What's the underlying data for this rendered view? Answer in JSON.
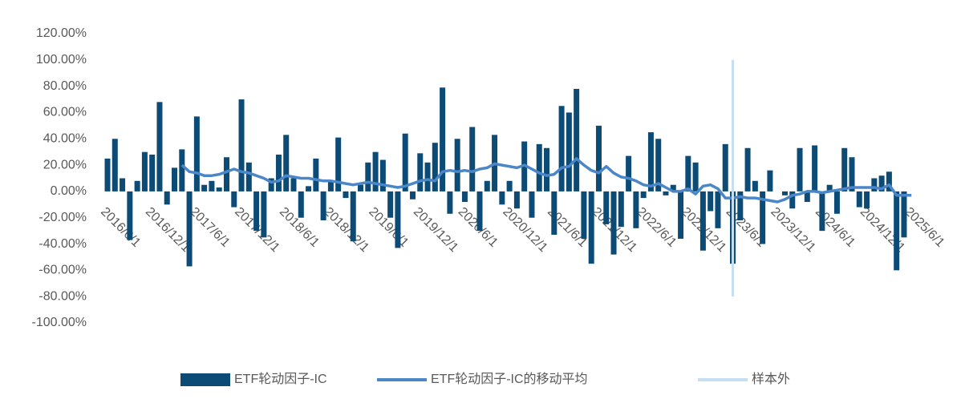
{
  "chart_data": {
    "type": "bar-line",
    "categories": [
      "2016/6/1",
      null,
      null,
      null,
      null,
      null,
      "2016/12/1",
      null,
      null,
      null,
      null,
      null,
      "2017/6/1",
      null,
      null,
      null,
      null,
      null,
      "2017/12/1",
      null,
      null,
      null,
      null,
      null,
      "2018/6/1",
      null,
      null,
      null,
      null,
      null,
      "2018/12/1",
      null,
      null,
      null,
      null,
      null,
      "2019/6/1",
      null,
      null,
      null,
      null,
      null,
      "2019/12/1",
      null,
      null,
      null,
      null,
      null,
      "2020/6/1",
      null,
      null,
      null,
      null,
      null,
      "2020/12/1",
      null,
      null,
      null,
      null,
      null,
      "2021/6/1",
      null,
      null,
      null,
      null,
      null,
      "2021/12/1",
      null,
      null,
      null,
      null,
      null,
      "2022/6/1",
      null,
      null,
      null,
      null,
      null,
      "2022/12/1",
      null,
      null,
      null,
      null,
      null,
      "2023/6/1",
      null,
      null,
      null,
      null,
      null,
      "2023/12/1",
      null,
      null,
      null,
      null,
      null,
      "2024/6/1",
      null,
      null,
      null,
      null,
      null,
      "2024/12/1",
      null,
      null,
      null,
      null,
      null,
      "2025/6/1"
    ],
    "series": [
      {
        "name": "ETF轮动因子-IC",
        "kind": "bar",
        "color": "#0c4b76",
        "values": [
          25,
          40,
          10,
          -37,
          8,
          30,
          28,
          68,
          -10,
          18,
          32,
          -57,
          57,
          5,
          8,
          3,
          26,
          -12,
          70,
          22,
          -30,
          -35,
          10,
          28,
          43,
          10,
          -20,
          4,
          25,
          -22,
          8,
          41,
          -5,
          -38,
          5,
          22,
          30,
          24,
          -20,
          -43,
          44,
          -6,
          29,
          22,
          37,
          79,
          -17,
          40,
          -8,
          49,
          -30,
          8,
          43,
          -10,
          8,
          -13,
          38,
          -20,
          36,
          33,
          -33,
          65,
          60,
          78,
          -36,
          -55,
          50,
          -25,
          -48,
          -27,
          27,
          -28,
          -5,
          45,
          40,
          -3,
          5,
          -36,
          27,
          22,
          -45,
          -15,
          -28,
          36,
          -55,
          -22,
          33,
          8,
          -40,
          16,
          0,
          -3,
          -13,
          33,
          -8,
          35,
          -30,
          5,
          -17,
          33,
          26,
          -12,
          -13,
          10,
          12,
          15,
          -60,
          -35,
          0
        ]
      },
      {
        "name": "ETF轮动因子-IC的移动平均",
        "kind": "line",
        "color": "#4a86c8",
        "values": [
          null,
          null,
          null,
          null,
          null,
          null,
          null,
          null,
          null,
          null,
          20,
          15,
          14,
          12,
          12,
          13,
          15,
          17,
          15,
          14,
          12,
          10,
          7,
          8,
          12,
          11,
          10,
          10,
          9,
          8,
          8,
          7,
          6,
          5,
          6,
          7,
          6,
          5,
          4,
          3,
          4,
          6,
          8,
          9,
          8,
          15,
          16,
          15,
          16,
          15,
          17,
          18,
          21,
          20,
          19,
          18,
          20,
          17,
          14,
          12,
          13,
          18,
          19,
          25,
          20,
          16,
          14,
          19,
          14,
          11,
          10,
          8,
          5,
          4,
          6,
          3,
          0,
          0,
          2,
          -2,
          4,
          5,
          2,
          -5,
          -5,
          -4,
          -5,
          -5,
          -6,
          -7,
          -8,
          -6,
          -3,
          -2,
          0,
          0,
          -1,
          0,
          1,
          2,
          3,
          3,
          3,
          3,
          2,
          5,
          -3,
          -3,
          -3
        ]
      }
    ],
    "sample_out": {
      "name": "样本外",
      "color": "#c6def1",
      "category_index": 84,
      "y_range": [
        -80,
        100
      ]
    },
    "ylim": [
      -100,
      120
    ],
    "yticks": [
      {
        "value": -100,
        "label": "-100.00%"
      },
      {
        "value": -80,
        "label": "-80.00%"
      },
      {
        "value": -60,
        "label": "-60.00%"
      },
      {
        "value": -40,
        "label": "-40.00%"
      },
      {
        "value": -20,
        "label": "-20.00%"
      },
      {
        "value": 0,
        "label": "0.00%"
      },
      {
        "value": 20,
        "label": "20.00%"
      },
      {
        "value": 40,
        "label": "40.00%"
      },
      {
        "value": 60,
        "label": "60.00%"
      },
      {
        "value": 80,
        "label": "80.00%"
      },
      {
        "value": 100,
        "label": "100.00%"
      },
      {
        "value": 120,
        "label": "120.00%"
      }
    ],
    "grid": false,
    "legend": "bottom"
  }
}
